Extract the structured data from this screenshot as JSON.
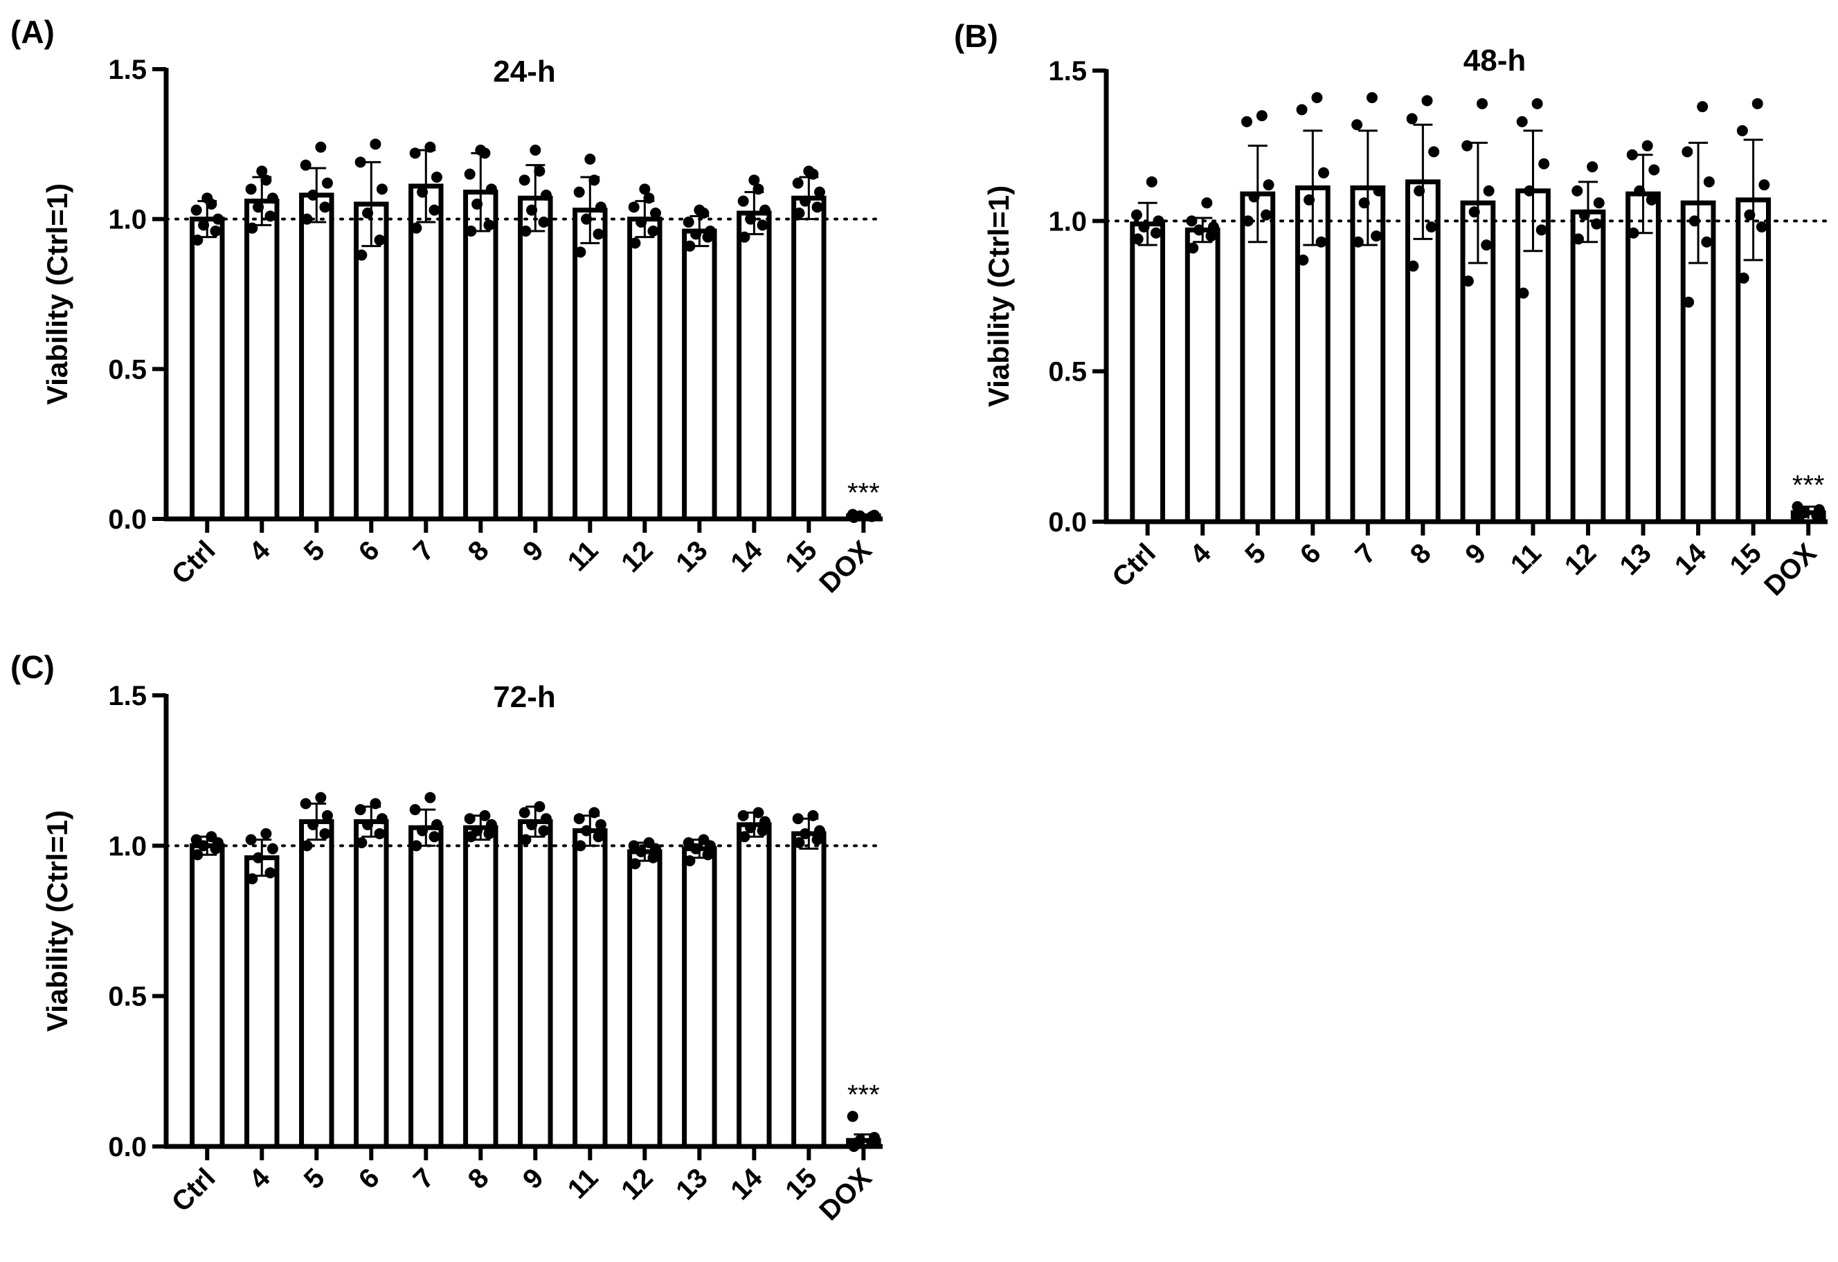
{
  "figure": {
    "panels": [
      {
        "label": "(A)"
      },
      {
        "label": "(B)"
      },
      {
        "label": "(C)"
      }
    ]
  },
  "chart_data": [
    {
      "type": "bar",
      "panel": "(A)",
      "title": "24-h",
      "xlabel": "",
      "ylabel": "Viability (Ctrl=1)",
      "ylim": [
        0,
        1.5
      ],
      "yticks": [
        0.0,
        0.5,
        1.0,
        1.5
      ],
      "ytick_labels": [
        "0.0",
        "0.5",
        "1.0",
        "1.5"
      ],
      "reference_line": 1.0,
      "categories": [
        "Ctrl",
        "4",
        "5",
        "6",
        "7",
        "8",
        "9",
        "11",
        "12",
        "13",
        "14",
        "15",
        "DOX"
      ],
      "values": [
        1.0,
        1.06,
        1.08,
        1.05,
        1.11,
        1.09,
        1.07,
        1.03,
        1.0,
        0.96,
        1.02,
        1.07,
        0.01
      ],
      "errors": [
        0.06,
        0.08,
        0.09,
        0.14,
        0.12,
        0.13,
        0.11,
        0.11,
        0.06,
        0.05,
        0.07,
        0.07,
        0.005
      ],
      "points": [
        [
          0.93,
          0.96,
          0.98,
          1.0,
          1.03,
          1.05,
          1.07
        ],
        [
          0.97,
          1.01,
          1.04,
          1.07,
          1.1,
          1.13,
          1.16
        ],
        [
          1.0,
          1.04,
          1.08,
          1.12,
          1.18,
          1.24
        ],
        [
          0.88,
          0.93,
          1.02,
          1.1,
          1.19,
          1.25
        ],
        [
          0.97,
          1.03,
          1.09,
          1.14,
          1.22,
          1.24
        ],
        [
          0.96,
          0.98,
          1.05,
          1.1,
          1.15,
          1.22,
          1.23
        ],
        [
          0.96,
          0.99,
          1.03,
          1.08,
          1.13,
          1.16,
          1.23
        ],
        [
          0.89,
          0.95,
          1.0,
          1.04,
          1.09,
          1.13,
          1.2
        ],
        [
          0.92,
          0.96,
          0.99,
          1.02,
          1.04,
          1.07,
          1.1
        ],
        [
          0.91,
          0.94,
          0.95,
          0.96,
          0.99,
          1.02,
          1.03
        ],
        [
          0.94,
          0.98,
          1.0,
          1.03,
          1.06,
          1.1,
          1.13
        ],
        [
          1.02,
          1.04,
          1.06,
          1.09,
          1.12,
          1.15,
          1.16
        ],
        [
          0.005,
          0.008,
          0.01,
          0.012,
          0.015
        ]
      ],
      "significance": [
        {
          "category": "DOX",
          "label": "***"
        }
      ]
    },
    {
      "type": "bar",
      "panel": "(B)",
      "title": "48-h",
      "xlabel": "",
      "ylabel": "Viability (Ctrl=1)",
      "ylim": [
        0,
        1.5
      ],
      "yticks": [
        0.0,
        0.5,
        1.0,
        1.5
      ],
      "ytick_labels": [
        "0.0",
        "0.5",
        "1.0",
        "1.5"
      ],
      "reference_line": 1.0,
      "categories": [
        "Ctrl",
        "4",
        "5",
        "6",
        "7",
        "8",
        "9",
        "11",
        "12",
        "13",
        "14",
        "15",
        "DOX"
      ],
      "values": [
        0.99,
        0.97,
        1.09,
        1.11,
        1.11,
        1.13,
        1.06,
        1.1,
        1.03,
        1.09,
        1.06,
        1.07,
        0.03
      ],
      "errors": [
        0.07,
        0.04,
        0.16,
        0.19,
        0.19,
        0.19,
        0.2,
        0.2,
        0.1,
        0.13,
        0.2,
        0.2,
        0.02
      ],
      "points": [
        [
          0.94,
          0.96,
          0.98,
          1.0,
          1.02,
          1.13
        ],
        [
          0.91,
          0.95,
          0.97,
          0.98,
          1.0,
          1.06
        ],
        [
          1.0,
          1.02,
          1.08,
          1.12,
          1.33,
          1.35
        ],
        [
          0.87,
          0.93,
          1.07,
          1.16,
          1.37,
          1.41
        ],
        [
          0.93,
          0.95,
          1.06,
          1.1,
          1.32,
          1.41
        ],
        [
          0.85,
          0.98,
          1.1,
          1.23,
          1.34,
          1.4
        ],
        [
          0.8,
          0.92,
          1.03,
          1.1,
          1.25,
          1.39
        ],
        [
          0.76,
          0.97,
          1.1,
          1.19,
          1.33,
          1.39
        ],
        [
          0.94,
          0.99,
          1.02,
          1.06,
          1.1,
          1.18
        ],
        [
          0.96,
          1.07,
          1.1,
          1.17,
          1.22,
          1.25
        ],
        [
          0.73,
          0.93,
          1.0,
          1.13,
          1.23,
          1.38
        ],
        [
          0.81,
          0.98,
          1.02,
          1.12,
          1.3,
          1.39
        ],
        [
          0.01,
          0.02,
          0.03,
          0.04,
          0.05
        ]
      ],
      "significance": [
        {
          "category": "DOX",
          "label": "***"
        }
      ]
    },
    {
      "type": "bar",
      "panel": "(C)",
      "title": "72-h",
      "xlabel": "",
      "ylabel": "Viability (Ctrl=1)",
      "ylim": [
        0,
        1.5
      ],
      "yticks": [
        0.0,
        0.5,
        1.0,
        1.5
      ],
      "ytick_labels": [
        "0.0",
        "0.5",
        "1.0",
        "1.5"
      ],
      "reference_line": 1.0,
      "categories": [
        "Ctrl",
        "4",
        "5",
        "6",
        "7",
        "8",
        "9",
        "11",
        "12",
        "13",
        "14",
        "15",
        "DOX"
      ],
      "values": [
        1.0,
        0.96,
        1.08,
        1.08,
        1.06,
        1.06,
        1.08,
        1.05,
        0.98,
        0.99,
        1.07,
        1.04,
        0.02
      ],
      "errors": [
        0.03,
        0.06,
        0.06,
        0.05,
        0.06,
        0.04,
        0.05,
        0.05,
        0.03,
        0.03,
        0.04,
        0.05,
        0.02
      ],
      "points": [
        [
          0.97,
          0.99,
          1.0,
          1.01,
          1.02,
          1.03
        ],
        [
          0.89,
          0.91,
          0.96,
          0.99,
          1.02,
          1.04
        ],
        [
          1.0,
          1.04,
          1.07,
          1.1,
          1.14,
          1.16
        ],
        [
          1.01,
          1.04,
          1.07,
          1.09,
          1.12,
          1.14
        ],
        [
          1.0,
          1.03,
          1.05,
          1.07,
          1.12,
          1.16
        ],
        [
          1.03,
          1.04,
          1.05,
          1.07,
          1.09,
          1.1
        ],
        [
          1.02,
          1.05,
          1.07,
          1.09,
          1.11,
          1.13
        ],
        [
          1.0,
          1.03,
          1.05,
          1.07,
          1.09,
          1.11
        ],
        [
          0.94,
          0.96,
          0.98,
          0.99,
          1.0,
          1.01
        ],
        [
          0.95,
          0.97,
          0.99,
          1.0,
          1.01,
          1.02
        ],
        [
          1.03,
          1.05,
          1.06,
          1.08,
          1.1,
          1.11
        ],
        [
          1.01,
          1.02,
          1.04,
          1.05,
          1.09,
          1.1
        ],
        [
          0.0,
          0.01,
          0.02,
          0.03,
          0.1
        ]
      ],
      "significance": [
        {
          "category": "DOX",
          "label": "***"
        }
      ]
    }
  ]
}
